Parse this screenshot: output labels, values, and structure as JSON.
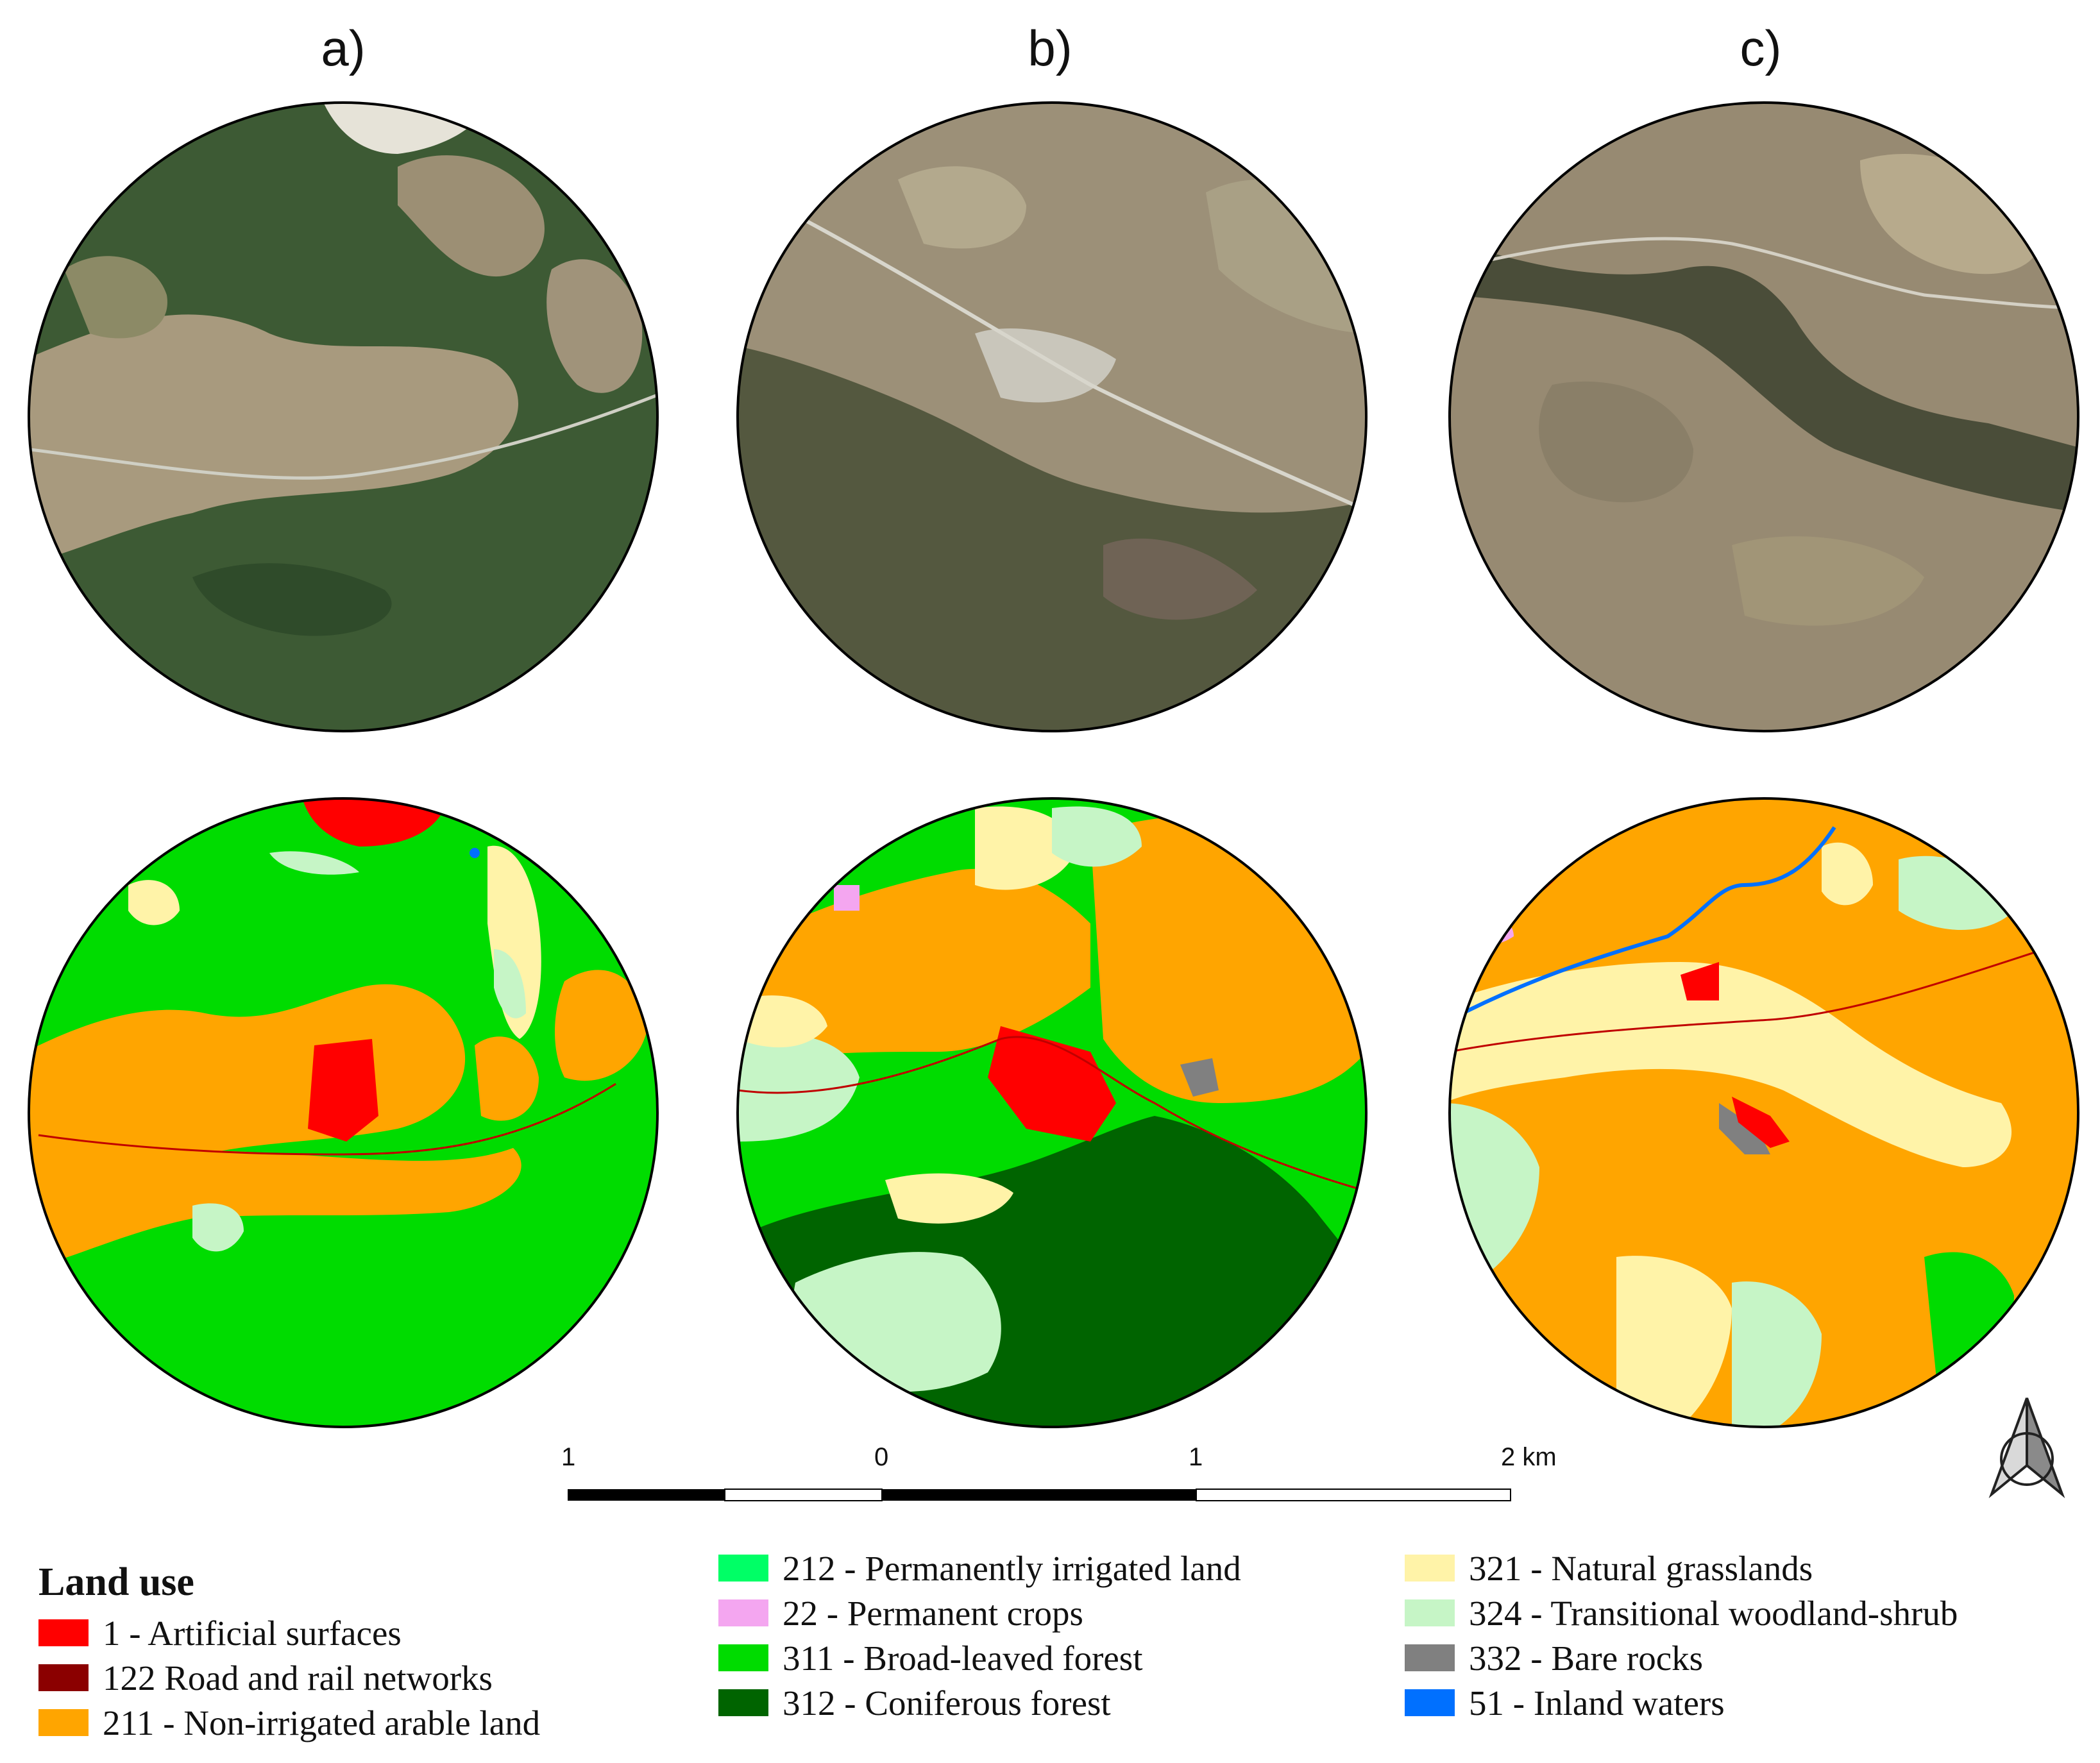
{
  "panels": [
    {
      "label": "a)"
    },
    {
      "label": "b)"
    },
    {
      "label": "c)"
    }
  ],
  "scale_bar": {
    "ticks": [
      "1",
      "0",
      "1",
      "2 km"
    ]
  },
  "north_arrow": {
    "icon": "north-arrow-icon"
  },
  "legend": {
    "title": "Land use",
    "items": [
      {
        "label": "1 - Artificial surfaces",
        "color": "#ff0000"
      },
      {
        "label": "122  Road and rail networks",
        "color": "#8b0000"
      },
      {
        "label": "211 - Non-irrigated arable land",
        "color": "#ffa500"
      },
      {
        "label": "212 - Permanently irrigated land",
        "color": "#00ff66"
      },
      {
        "label": "22 - Permanent crops",
        "color": "#f4a6f0"
      },
      {
        "label": "311 - Broad-leaved forest",
        "color": "#00dc00"
      },
      {
        "label": "312 - Coniferous forest",
        "color": "#006400"
      },
      {
        "label": "321 - Natural grasslands",
        "color": "#fff3a8"
      },
      {
        "label": "324 - Transitional woodland-shrub",
        "color": "#c6f5c6"
      },
      {
        "label": "332 - Bare rocks",
        "color": "#808080"
      },
      {
        "label": "51 - Inland waters",
        "color": "#0070ff"
      }
    ]
  }
}
